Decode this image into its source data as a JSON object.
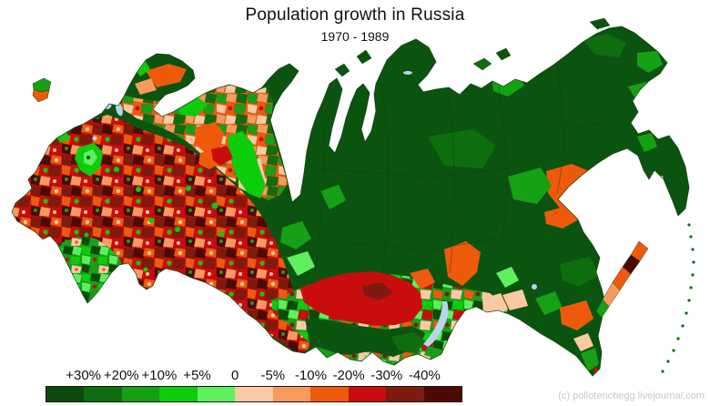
{
  "header": {
    "title": "Population growth in Russia",
    "subtitle": "1970 - 1989"
  },
  "legend": {
    "labels": [
      "+30%",
      "+20%",
      "+10%",
      "+5%",
      "0",
      "-5%",
      "-10%",
      "-20%",
      "-30%",
      "-40%"
    ],
    "colors": [
      "#0d4a0d",
      "#0e6e0e",
      "#16a016",
      "#0ccc0c",
      "#5ef05e",
      "#fbc9a4",
      "#fa995e",
      "#ee5a0c",
      "#c90d0d",
      "#7e1b0e",
      "#4d0a05"
    ]
  },
  "map": {
    "land_color": "#0b5410",
    "lake_color": "#b9d4ec",
    "region_border_color": "#0a3c0a",
    "sea_color": "#ffffff"
  },
  "footer": {
    "attribution": "(c) pollotenchegg.livejournal.com"
  }
}
